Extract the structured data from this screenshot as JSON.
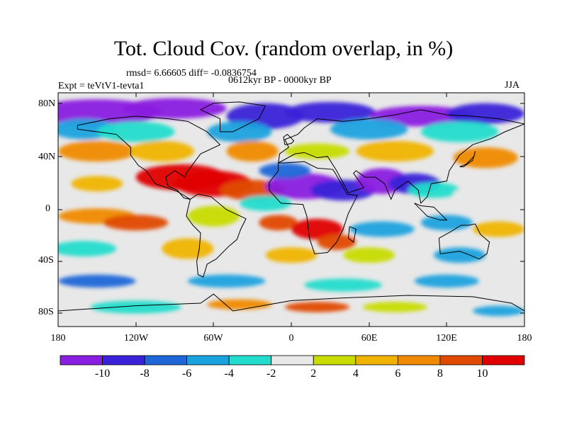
{
  "title": "Tot. Cloud Cov. (random overlap, in %)",
  "stats": "rmsd= 6.66605 diff= -0.0836754",
  "experiment": "Expt = teVtV1-tevta1",
  "period": "0612kyr BP - 0000kyr BP",
  "season": "JJA",
  "map": {
    "projection": "cylindrical equidistant",
    "lon_range": [
      -180,
      180
    ],
    "lat_range": [
      -90,
      90
    ],
    "lat_ticks": [
      "80N",
      "40N",
      "0",
      "40S",
      "80S"
    ],
    "lon_ticks": [
      "180",
      "120W",
      "60W",
      "0",
      "60E",
      "120E",
      "180"
    ]
  },
  "colorbar": {
    "labels": [
      "-10",
      "-8",
      "-6",
      "-4",
      "-2",
      "2",
      "4",
      "6",
      "8",
      "10"
    ],
    "colors": [
      "#8a1ee0",
      "#3a22d8",
      "#1f67d8",
      "#1aa2de",
      "#22ddcc",
      "#e8e8e8",
      "#c8dc00",
      "#f0b400",
      "#f08a00",
      "#e04a00",
      "#e00000"
    ]
  }
}
